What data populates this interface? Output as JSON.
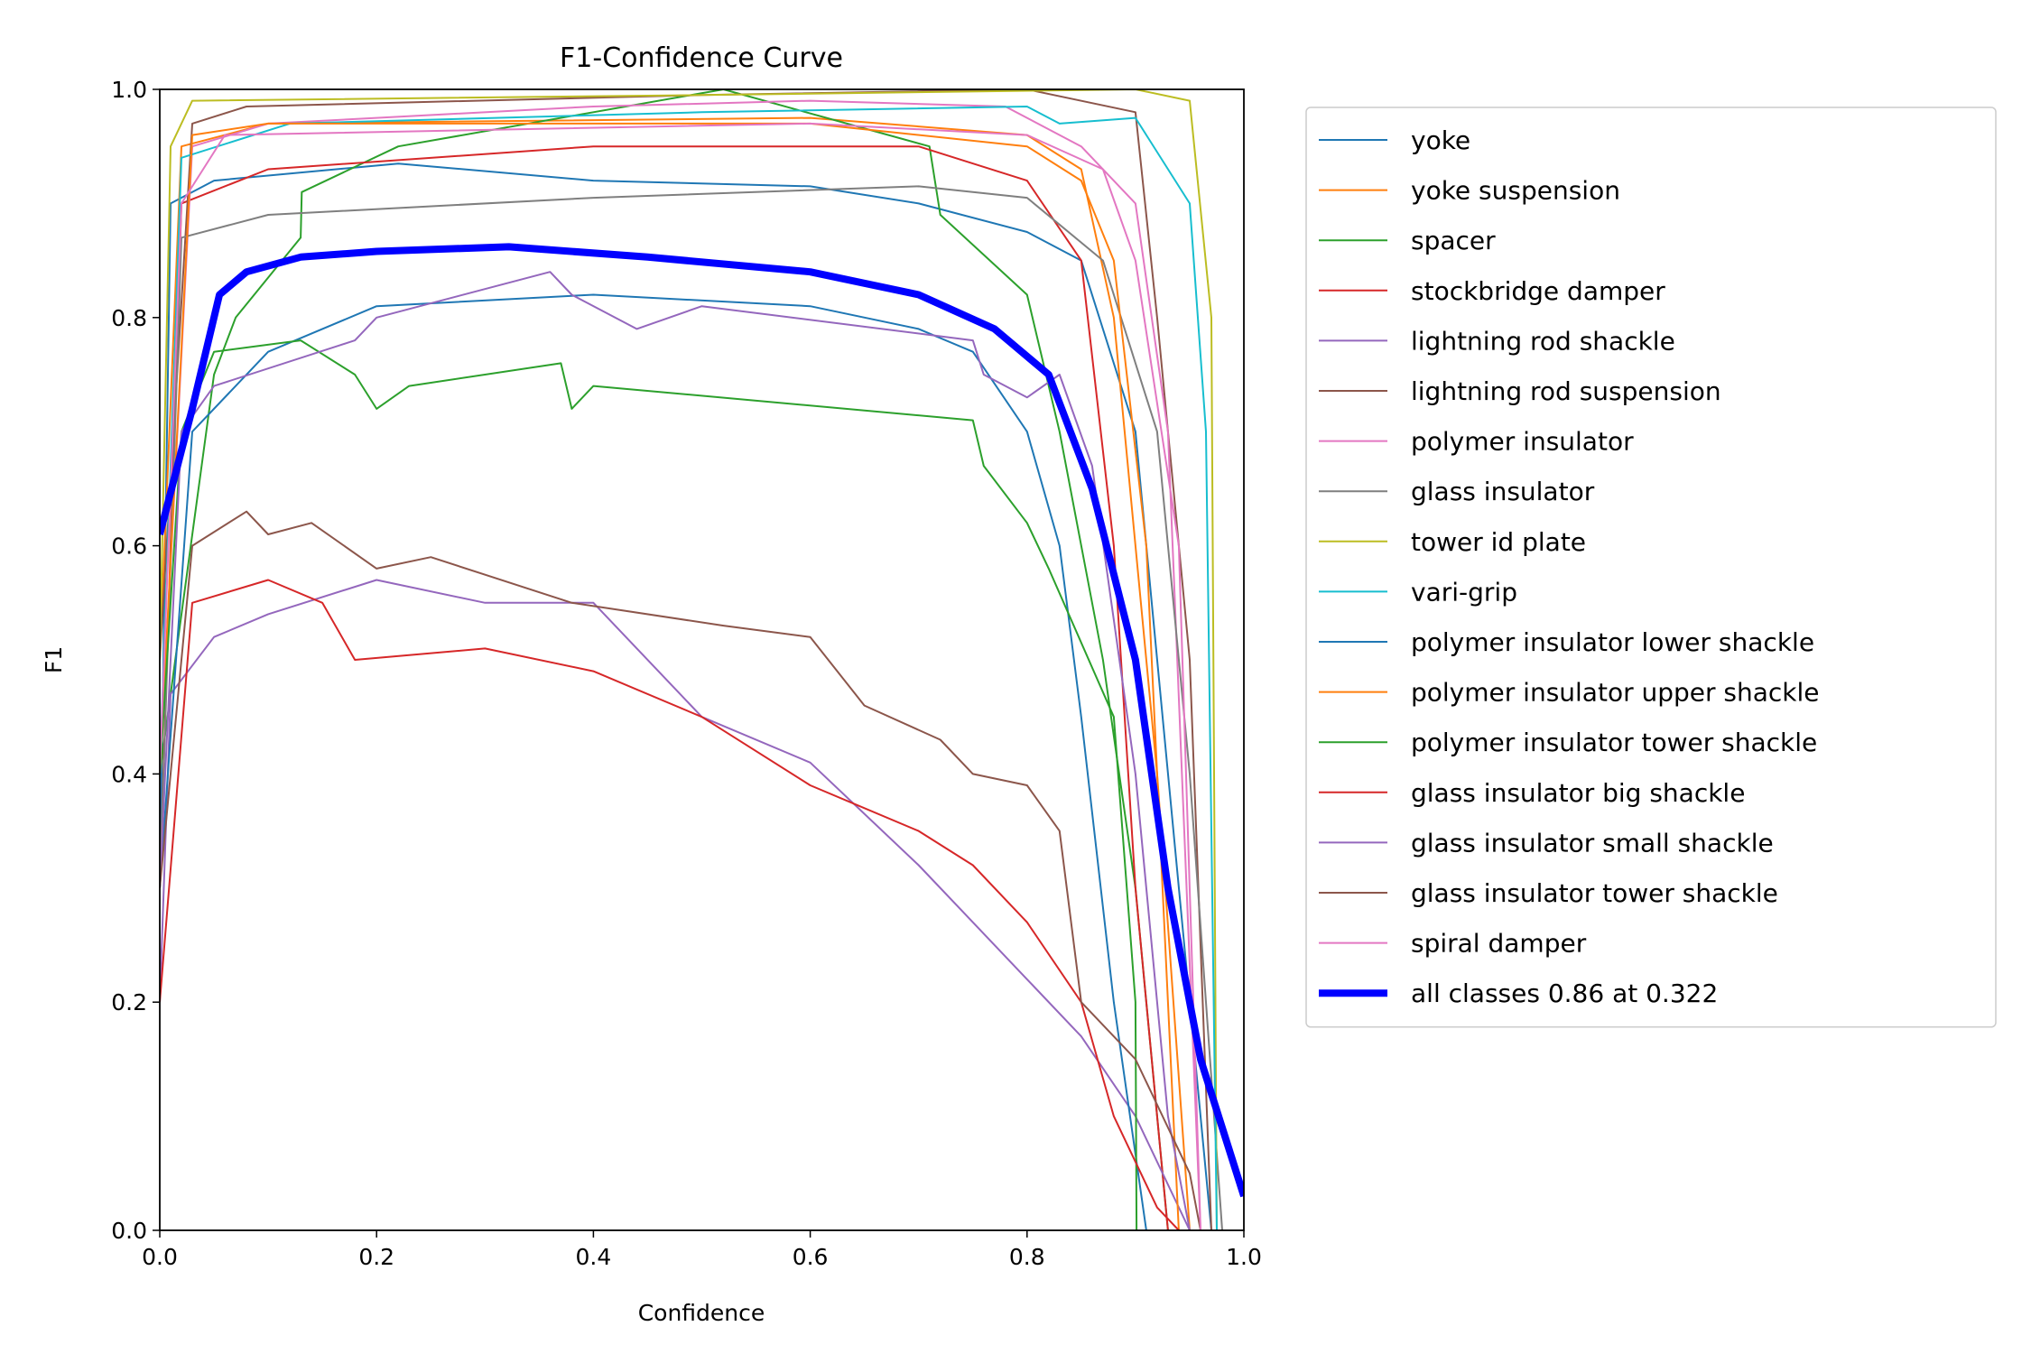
{
  "chart_data": {
    "type": "line",
    "title": "F1-Confidence Curve",
    "xlabel": "Confidence",
    "ylabel": "F1",
    "xlim": [
      0,
      1
    ],
    "ylim": [
      0,
      1
    ],
    "xticks": [
      "0.0",
      "0.2",
      "0.4",
      "0.6",
      "0.8",
      "1.0"
    ],
    "yticks": [
      "0.0",
      "0.2",
      "0.4",
      "0.6",
      "0.8",
      "1.0"
    ],
    "grid": false,
    "legend_position": "outside-right",
    "series": [
      {
        "name": "yoke",
        "color": "#1f77b4",
        "points": [
          [
            0,
            0.3
          ],
          [
            0.01,
            0.9
          ],
          [
            0.05,
            0.92
          ],
          [
            0.22,
            0.935
          ],
          [
            0.4,
            0.92
          ],
          [
            0.6,
            0.915
          ],
          [
            0.7,
            0.9
          ],
          [
            0.8,
            0.875
          ],
          [
            0.85,
            0.85
          ],
          [
            0.9,
            0.7
          ],
          [
            0.95,
            0.2
          ],
          [
            0.97,
            0
          ]
        ]
      },
      {
        "name": "yoke suspension",
        "color": "#ff7f0e",
        "points": [
          [
            0,
            0.5
          ],
          [
            0.02,
            0.95
          ],
          [
            0.1,
            0.97
          ],
          [
            0.6,
            0.975
          ],
          [
            0.8,
            0.96
          ],
          [
            0.85,
            0.93
          ],
          [
            0.88,
            0.8
          ],
          [
            0.92,
            0.4
          ],
          [
            0.95,
            0
          ]
        ]
      },
      {
        "name": "spacer",
        "color": "#2ca02c",
        "points": [
          [
            0,
            0.4
          ],
          [
            0.05,
            0.75
          ],
          [
            0.07,
            0.8
          ],
          [
            0.13,
            0.87
          ],
          [
            0.131,
            0.91
          ],
          [
            0.22,
            0.95
          ],
          [
            0.52,
            1.0
          ],
          [
            0.71,
            0.95
          ],
          [
            0.72,
            0.89
          ],
          [
            0.8,
            0.82
          ],
          [
            0.83,
            0.7
          ],
          [
            0.87,
            0.5
          ],
          [
            0.9,
            0.3
          ],
          [
            0.93,
            0
          ]
        ]
      },
      {
        "name": "stockbridge damper",
        "color": "#d62728",
        "points": [
          [
            0,
            0.3
          ],
          [
            0.02,
            0.9
          ],
          [
            0.1,
            0.93
          ],
          [
            0.4,
            0.95
          ],
          [
            0.7,
            0.95
          ],
          [
            0.8,
            0.92
          ],
          [
            0.85,
            0.85
          ],
          [
            0.88,
            0.6
          ],
          [
            0.9,
            0.3
          ],
          [
            0.93,
            0
          ]
        ]
      },
      {
        "name": "lightning rod shackle",
        "color": "#9467bd",
        "points": [
          [
            0,
            0.2
          ],
          [
            0.01,
            0.47
          ],
          [
            0.05,
            0.52
          ],
          [
            0.1,
            0.54
          ],
          [
            0.2,
            0.57
          ],
          [
            0.3,
            0.55
          ],
          [
            0.4,
            0.55
          ],
          [
            0.5,
            0.45
          ],
          [
            0.6,
            0.41
          ],
          [
            0.7,
            0.32
          ],
          [
            0.8,
            0.22
          ],
          [
            0.85,
            0.17
          ],
          [
            0.9,
            0.1
          ],
          [
            0.95,
            0
          ]
        ]
      },
      {
        "name": "lightning rod suspension",
        "color": "#8c564b",
        "points": [
          [
            0,
            0.5
          ],
          [
            0.03,
            0.97
          ],
          [
            0.08,
            0.985
          ],
          [
            0.5,
            0.995
          ],
          [
            0.8,
            1.0
          ],
          [
            0.9,
            0.98
          ],
          [
            0.92,
            0.8
          ],
          [
            0.95,
            0.5
          ],
          [
            0.97,
            0
          ]
        ]
      },
      {
        "name": "polymer insulator",
        "color": "#e377c2",
        "points": [
          [
            0,
            0.4
          ],
          [
            0.03,
            0.95
          ],
          [
            0.1,
            0.97
          ],
          [
            0.4,
            0.985
          ],
          [
            0.6,
            0.99
          ],
          [
            0.78,
            0.985
          ],
          [
            0.85,
            0.95
          ],
          [
            0.9,
            0.9
          ],
          [
            0.93,
            0.7
          ],
          [
            0.96,
            0
          ]
        ]
      },
      {
        "name": "glass insulator",
        "color": "#7f7f7f",
        "points": [
          [
            0,
            0.3
          ],
          [
            0.02,
            0.87
          ],
          [
            0.1,
            0.89
          ],
          [
            0.4,
            0.905
          ],
          [
            0.7,
            0.915
          ],
          [
            0.8,
            0.905
          ],
          [
            0.87,
            0.85
          ],
          [
            0.92,
            0.7
          ],
          [
            0.95,
            0.4
          ],
          [
            0.98,
            0
          ]
        ]
      },
      {
        "name": "tower id plate",
        "color": "#bcbd22",
        "points": [
          [
            0,
            0.5
          ],
          [
            0.01,
            0.95
          ],
          [
            0.03,
            0.99
          ],
          [
            0.5,
            0.995
          ],
          [
            0.9,
            1.0
          ],
          [
            0.95,
            0.99
          ],
          [
            0.97,
            0.8
          ],
          [
            0.975,
            0
          ]
        ]
      },
      {
        "name": "vari-grip",
        "color": "#17becf",
        "points": [
          [
            0,
            0.4
          ],
          [
            0.02,
            0.94
          ],
          [
            0.12,
            0.97
          ],
          [
            0.5,
            0.98
          ],
          [
            0.8,
            0.985
          ],
          [
            0.83,
            0.97
          ],
          [
            0.9,
            0.975
          ],
          [
            0.95,
            0.9
          ],
          [
            0.965,
            0.7
          ],
          [
            0.975,
            0
          ]
        ]
      },
      {
        "name": "polymer insulator lower shackle",
        "color": "#1f77b4",
        "points": [
          [
            0,
            0.3
          ],
          [
            0.03,
            0.7
          ],
          [
            0.1,
            0.77
          ],
          [
            0.2,
            0.81
          ],
          [
            0.4,
            0.82
          ],
          [
            0.6,
            0.81
          ],
          [
            0.7,
            0.79
          ],
          [
            0.75,
            0.77
          ],
          [
            0.8,
            0.7
          ],
          [
            0.83,
            0.6
          ],
          [
            0.85,
            0.45
          ],
          [
            0.88,
            0.2
          ],
          [
            0.91,
            0
          ]
        ]
      },
      {
        "name": "polymer insulator upper shackle",
        "color": "#ff7f0e",
        "points": [
          [
            0,
            0.4
          ],
          [
            0.03,
            0.96
          ],
          [
            0.1,
            0.97
          ],
          [
            0.6,
            0.97
          ],
          [
            0.8,
            0.95
          ],
          [
            0.85,
            0.92
          ],
          [
            0.88,
            0.85
          ],
          [
            0.91,
            0.6
          ],
          [
            0.94,
            0
          ]
        ]
      },
      {
        "name": "polymer insulator tower shackle",
        "color": "#2ca02c",
        "points": [
          [
            0,
            0.4
          ],
          [
            0.02,
            0.7
          ],
          [
            0.05,
            0.77
          ],
          [
            0.13,
            0.78
          ],
          [
            0.18,
            0.75
          ],
          [
            0.2,
            0.72
          ],
          [
            0.23,
            0.74
          ],
          [
            0.37,
            0.76
          ],
          [
            0.38,
            0.72
          ],
          [
            0.4,
            0.74
          ],
          [
            0.75,
            0.71
          ],
          [
            0.76,
            0.67
          ],
          [
            0.8,
            0.62
          ],
          [
            0.82,
            0.58
          ],
          [
            0.88,
            0.45
          ],
          [
            0.9,
            0.2
          ],
          [
            0.901,
            0
          ]
        ]
      },
      {
        "name": "glass insulator big shackle",
        "color": "#d62728",
        "points": [
          [
            0,
            0.2
          ],
          [
            0.03,
            0.55
          ],
          [
            0.1,
            0.57
          ],
          [
            0.15,
            0.55
          ],
          [
            0.18,
            0.5
          ],
          [
            0.3,
            0.51
          ],
          [
            0.4,
            0.49
          ],
          [
            0.5,
            0.45
          ],
          [
            0.6,
            0.39
          ],
          [
            0.7,
            0.35
          ],
          [
            0.75,
            0.32
          ],
          [
            0.8,
            0.27
          ],
          [
            0.85,
            0.2
          ],
          [
            0.88,
            0.1
          ],
          [
            0.92,
            0.02
          ],
          [
            0.94,
            0
          ]
        ]
      },
      {
        "name": "glass insulator small shackle",
        "color": "#9467bd",
        "points": [
          [
            0,
            0.3
          ],
          [
            0.02,
            0.7
          ],
          [
            0.05,
            0.74
          ],
          [
            0.18,
            0.78
          ],
          [
            0.2,
            0.8
          ],
          [
            0.36,
            0.84
          ],
          [
            0.38,
            0.82
          ],
          [
            0.44,
            0.79
          ],
          [
            0.5,
            0.81
          ],
          [
            0.75,
            0.78
          ],
          [
            0.76,
            0.75
          ],
          [
            0.8,
            0.73
          ],
          [
            0.83,
            0.75
          ],
          [
            0.86,
            0.67
          ],
          [
            0.9,
            0.4
          ],
          [
            0.93,
            0.1
          ],
          [
            0.95,
            0
          ]
        ]
      },
      {
        "name": "glass insulator tower shackle",
        "color": "#8c564b",
        "points": [
          [
            0,
            0.3
          ],
          [
            0.03,
            0.6
          ],
          [
            0.08,
            0.63
          ],
          [
            0.1,
            0.61
          ],
          [
            0.14,
            0.62
          ],
          [
            0.2,
            0.58
          ],
          [
            0.25,
            0.59
          ],
          [
            0.38,
            0.55
          ],
          [
            0.52,
            0.53
          ],
          [
            0.6,
            0.52
          ],
          [
            0.65,
            0.46
          ],
          [
            0.72,
            0.43
          ],
          [
            0.75,
            0.4
          ],
          [
            0.8,
            0.39
          ],
          [
            0.83,
            0.35
          ],
          [
            0.85,
            0.2
          ],
          [
            0.9,
            0.15
          ],
          [
            0.95,
            0.05
          ],
          [
            0.96,
            0
          ]
        ]
      },
      {
        "name": "spiral damper",
        "color": "#e377c2",
        "points": [
          [
            0,
            0.4
          ],
          [
            0.02,
            0.9
          ],
          [
            0.06,
            0.96
          ],
          [
            0.6,
            0.97
          ],
          [
            0.8,
            0.96
          ],
          [
            0.87,
            0.93
          ],
          [
            0.9,
            0.85
          ],
          [
            0.94,
            0.6
          ],
          [
            0.96,
            0
          ]
        ]
      },
      {
        "name": "all classes 0.86 at 0.322",
        "color": "#0000ff",
        "bold": true,
        "points": [
          [
            0,
            0.61
          ],
          [
            0.03,
            0.72
          ],
          [
            0.055,
            0.82
          ],
          [
            0.08,
            0.84
          ],
          [
            0.13,
            0.853
          ],
          [
            0.2,
            0.858
          ],
          [
            0.322,
            0.862
          ],
          [
            0.45,
            0.853
          ],
          [
            0.6,
            0.84
          ],
          [
            0.7,
            0.82
          ],
          [
            0.77,
            0.79
          ],
          [
            0.82,
            0.75
          ],
          [
            0.86,
            0.65
          ],
          [
            0.9,
            0.5
          ],
          [
            0.93,
            0.3
          ],
          [
            0.96,
            0.15
          ],
          [
            1.0,
            0.03
          ]
        ]
      }
    ]
  }
}
